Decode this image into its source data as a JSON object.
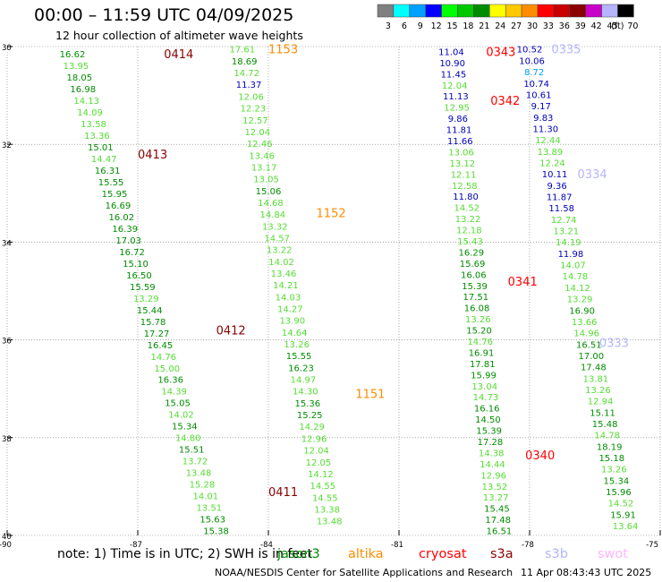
{
  "header": {
    "title": "00:00 – 11:59 UTC 04/09/2025",
    "subtitle": "12 hour collection of altimeter wave heights"
  },
  "legend": {
    "unit": "(ft)",
    "bins": [
      {
        "label": "3",
        "color": "#808080"
      },
      {
        "label": "6",
        "color": "#00ffff"
      },
      {
        "label": "9",
        "color": "#00a0ff"
      },
      {
        "label": "12",
        "color": "#0000ff"
      },
      {
        "label": "15",
        "color": "#00ff00"
      },
      {
        "label": "18",
        "color": "#00c800"
      },
      {
        "label": "21",
        "color": "#008c00"
      },
      {
        "label": "24",
        "color": "#ffff00"
      },
      {
        "label": "27",
        "color": "#ffc800"
      },
      {
        "label": "30",
        "color": "#ff8c00"
      },
      {
        "label": "33",
        "color": "#ff0000"
      },
      {
        "label": "36",
        "color": "#c80000"
      },
      {
        "label": "39",
        "color": "#8b0000"
      },
      {
        "label": "42",
        "color": "#c800c8"
      },
      {
        "label": "45",
        "color": "#b4b4ff"
      },
      {
        "label": "70",
        "color": "#000000"
      }
    ]
  },
  "axes": {
    "lat_labels": [
      "30",
      "32",
      "34",
      "36",
      "38",
      "40"
    ],
    "lon_labels": [
      "-90",
      "-87",
      "-84",
      "-81",
      "-78",
      "-75"
    ]
  },
  "track_labels": [
    {
      "text": "0414",
      "lon": -86.4,
      "lat": 30.15,
      "color": "#8b0000"
    },
    {
      "text": "0413",
      "lon": -87.0,
      "lat": 32.2,
      "color": "#8b0000"
    },
    {
      "text": "0412",
      "lon": -85.2,
      "lat": 35.8,
      "color": "#8b0000"
    },
    {
      "text": "0411",
      "lon": -84.0,
      "lat": 39.1,
      "color": "#8b0000"
    },
    {
      "text": "1153",
      "lon": -84.0,
      "lat": 30.05,
      "color": "#ff8c00"
    },
    {
      "text": "1152",
      "lon": -82.9,
      "lat": 33.4,
      "color": "#ff8c00"
    },
    {
      "text": "1151",
      "lon": -82.0,
      "lat": 37.1,
      "color": "#ff8c00"
    },
    {
      "text": "0343",
      "lon": -79.0,
      "lat": 30.1,
      "color": "#ff0000"
    },
    {
      "text": "0342",
      "lon": -78.9,
      "lat": 31.1,
      "color": "#ff0000"
    },
    {
      "text": "0341",
      "lon": -78.5,
      "lat": 34.8,
      "color": "#ff0000"
    },
    {
      "text": "0340",
      "lon": -78.1,
      "lat": 38.35,
      "color": "#ff0000"
    },
    {
      "text": "0335",
      "lon": -77.5,
      "lat": 30.05,
      "color": "#b4b4ff"
    },
    {
      "text": "0334",
      "lon": -76.9,
      "lat": 32.6,
      "color": "#b4b4ff"
    },
    {
      "text": "0333",
      "lon": -76.4,
      "lat": 36.05,
      "color": "#b4b4ff"
    }
  ],
  "tracks": [
    {
      "name": "0414-0411",
      "lon_start": -88.5,
      "lat_start": 30.15,
      "lon_end": -85.2,
      "lat_end": 39.9,
      "values": [
        "16.62",
        "13.95",
        "18.05",
        "16.98",
        "14.13",
        "14.09",
        "13.58",
        "13.36",
        "15.01",
        "14.47",
        "16.31",
        "15.55",
        "15.95",
        "16.69",
        "16.02",
        "16.39",
        "17.03",
        "16.72",
        "15.10",
        "16.50",
        "15.59",
        "13.29",
        "15.44",
        "15.78",
        "17.27",
        "16.45",
        "14.76",
        "15.00",
        "16.36",
        "14.39",
        "15.05",
        "14.02",
        "15.34",
        "14.80",
        "15.51",
        "13.72",
        "13.48",
        "15.28",
        "14.01",
        "13.51",
        "15.63",
        "15.38"
      ],
      "colors": [
        "g",
        "l",
        "g",
        "g",
        "l",
        "l",
        "l",
        "l",
        "g",
        "l",
        "g",
        "g",
        "g",
        "g",
        "g",
        "g",
        "g",
        "g",
        "g",
        "g",
        "g",
        "l",
        "g",
        "g",
        "g",
        "g",
        "l",
        "l",
        "g",
        "l",
        "g",
        "l",
        "g",
        "l",
        "g",
        "l",
        "l",
        "l",
        "l",
        "l",
        "g",
        "g"
      ]
    },
    {
      "name": "1153-1151",
      "lon_start": -84.6,
      "lat_start": 30.05,
      "lon_end": -82.6,
      "lat_end": 39.7,
      "values": [
        "17.61",
        "18.69",
        "14.72",
        "11.37",
        "12.06",
        "12.23",
        "12.57",
        "12.04",
        "12.46",
        "13.46",
        "13.17",
        "13.05",
        "15.06",
        "14.68",
        "14.84",
        "13.32",
        "14.57",
        "13.22",
        "14.02",
        "13.46",
        "14.21",
        "14.03",
        "14.27",
        "13.90",
        "14.64",
        "13.26",
        "15.55",
        "16.23",
        "14.97",
        "14.30",
        "15.36",
        "15.25",
        "14.29",
        "12.96",
        "12.04",
        "12.05",
        "14.12",
        "14.55",
        "14.55",
        "13.38",
        "13.48"
      ],
      "colors": [
        "l",
        "g",
        "l",
        "b",
        "l",
        "l",
        "l",
        "l",
        "l",
        "l",
        "l",
        "l",
        "g",
        "l",
        "l",
        "l",
        "l",
        "l",
        "l",
        "l",
        "l",
        "l",
        "l",
        "l",
        "l",
        "l",
        "g",
        "g",
        "l",
        "l",
        "g",
        "g",
        "l",
        "l",
        "l",
        "l",
        "l",
        "l",
        "l",
        "l",
        "l"
      ]
    },
    {
      "name": "0343-0340",
      "lon_start": -79.8,
      "lat_start": 30.1,
      "lon_end": -78.7,
      "lat_end": 39.9,
      "values": [
        "11.04",
        "10.90",
        "11.45",
        "12.04",
        "11.13",
        "12.95",
        "9.86",
        "11.81",
        "11.66",
        "13.06",
        "13.12",
        "12.11",
        "12.58",
        "11.80",
        "14.52",
        "13.22",
        "12.18",
        "15.43",
        "16.29",
        "15.69",
        "16.06",
        "15.39",
        "17.51",
        "16.08",
        "13.26",
        "15.20",
        "14.76",
        "16.91",
        "17.81",
        "15.99",
        "13.04",
        "14.73",
        "16.16",
        "14.50",
        "15.39",
        "17.28",
        "14.38",
        "14.44",
        "12.96",
        "13.52",
        "13.27",
        "15.45",
        "17.48",
        "16.51"
      ],
      "colors": [
        "b",
        "b",
        "b",
        "l",
        "b",
        "l",
        "b",
        "b",
        "b",
        "l",
        "l",
        "l",
        "l",
        "b",
        "l",
        "l",
        "l",
        "l",
        "g",
        "g",
        "g",
        "g",
        "g",
        "g",
        "l",
        "g",
        "l",
        "g",
        "g",
        "g",
        "l",
        "l",
        "g",
        "g",
        "g",
        "g",
        "l",
        "l",
        "l",
        "l",
        "l",
        "g",
        "g",
        "g"
      ]
    },
    {
      "name": "0335-0333",
      "lon_start": -78.0,
      "lat_start": 30.05,
      "lon_end": -75.8,
      "lat_end": 39.8,
      "values": [
        "10.52",
        "10.06",
        "8.72",
        "10.74",
        "10.61",
        "9.17",
        "9.83",
        "11.30",
        "12.44",
        "13.89",
        "12.24",
        "10.11",
        "9.36",
        "11.87",
        "11.58",
        "12.74",
        "13.21",
        "14.19",
        "11.98",
        "14.07",
        "14.78",
        "14.12",
        "13.29",
        "16.90",
        "13.66",
        "14.96",
        "16.51",
        "17.00",
        "17.48",
        "13.81",
        "13.26",
        "12.94",
        "15.11",
        "15.48",
        "14.78",
        "18.19",
        "15.18",
        "13.26",
        "15.34",
        "15.96",
        "14.52",
        "15.91",
        "13.64"
      ],
      "colors": [
        "b",
        "b",
        "c",
        "b",
        "b",
        "b",
        "b",
        "b",
        "l",
        "l",
        "l",
        "b",
        "b",
        "b",
        "b",
        "l",
        "l",
        "l",
        "b",
        "l",
        "l",
        "l",
        "l",
        "g",
        "l",
        "l",
        "g",
        "g",
        "g",
        "l",
        "l",
        "l",
        "g",
        "g",
        "l",
        "g",
        "g",
        "l",
        "g",
        "g",
        "l",
        "g",
        "l"
      ]
    }
  ],
  "footer": {
    "note": "note:  1) Time is in UTC; 2) SWH is in feet",
    "satellites": [
      {
        "name": "jason3",
        "color": "#008c00"
      },
      {
        "name": "altika",
        "color": "#ff8c00"
      },
      {
        "name": "cryosat",
        "color": "#ff0000"
      },
      {
        "name": "s3a",
        "color": "#8b0000"
      },
      {
        "name": "s3b",
        "color": "#b4b4ff"
      },
      {
        "name": "swot",
        "color": "#ffb4ff"
      }
    ],
    "credit": "NOAA/NESDIS Center for Satellite Applications and Research",
    "timestamp": "11 Apr 08:43:43 UTC 2025"
  }
}
